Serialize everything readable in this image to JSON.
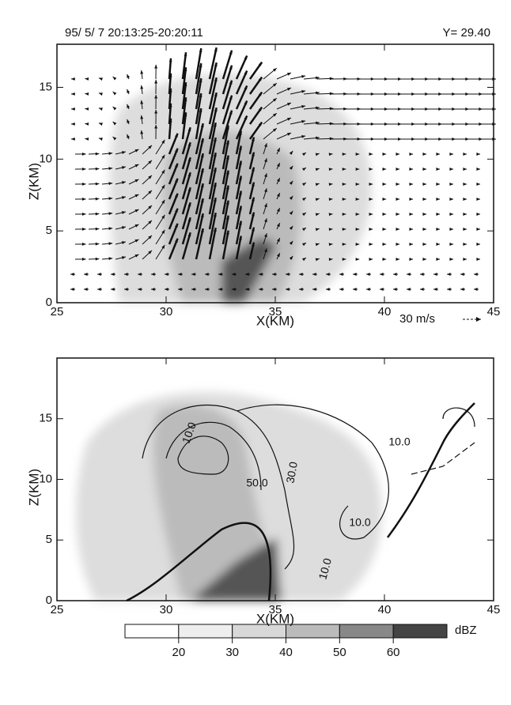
{
  "header": {
    "time": "95/ 5/ 7 20:13:25-20:20:11",
    "location": "Y= 29.40"
  },
  "panels": [
    {
      "xlabel": "X(KM)",
      "ylabel": "Z(KM)",
      "xlim": [
        25,
        45
      ],
      "ylim": [
        0,
        18
      ],
      "xticks": [
        25,
        30,
        35,
        40,
        45
      ],
      "yticks": [
        0,
        5,
        10,
        15
      ],
      "vector_scale": "30 m/s"
    },
    {
      "xlabel": "X(KM)",
      "ylabel": "Z(KM)",
      "xlim": [
        25,
        45
      ],
      "ylim": [
        0,
        20
      ],
      "xticks": [
        25,
        30,
        35,
        40,
        45
      ],
      "yticks": [
        0,
        5,
        10,
        15
      ],
      "contour_labels": [
        "10.0",
        "50.0",
        "30.0",
        "10.0",
        "10.0",
        "10.0"
      ]
    }
  ],
  "colorbar": {
    "unit": "dBZ",
    "lim": [
      10,
      70
    ],
    "ticks": [
      20,
      30,
      40,
      50,
      60
    ]
  }
}
